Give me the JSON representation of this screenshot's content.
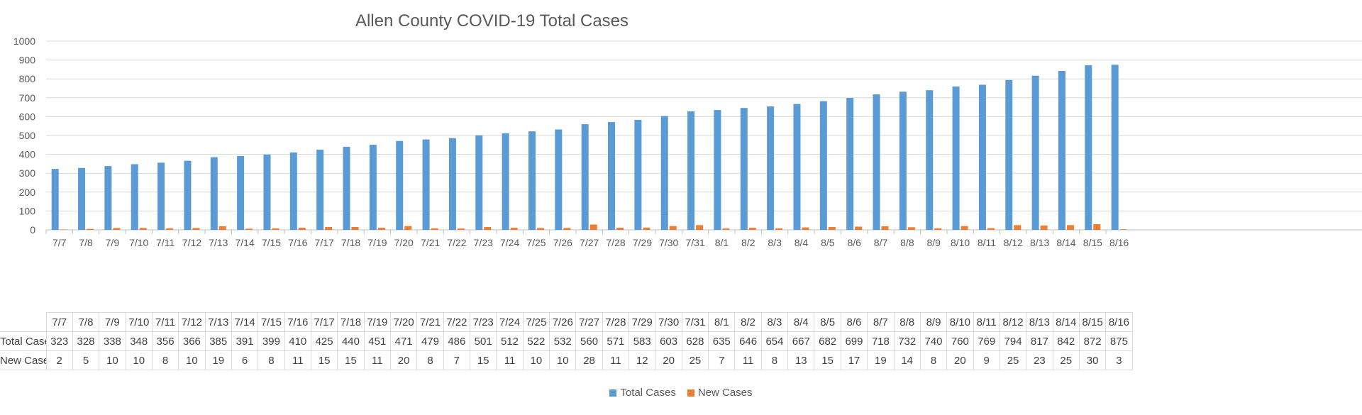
{
  "chart_data": {
    "type": "bar",
    "title": "Allen County COVID-19 Total Cases",
    "categories": [
      "7/7",
      "7/8",
      "7/9",
      "7/10",
      "7/11",
      "7/12",
      "7/13",
      "7/14",
      "7/15",
      "7/16",
      "7/17",
      "7/18",
      "7/19",
      "7/20",
      "7/21",
      "7/22",
      "7/23",
      "7/24",
      "7/25",
      "7/26",
      "7/27",
      "7/28",
      "7/29",
      "7/30",
      "7/31",
      "8/1",
      "8/2",
      "8/3",
      "8/4",
      "8/5",
      "8/6",
      "8/7",
      "8/8",
      "8/9",
      "8/10",
      "8/11",
      "8/12",
      "8/13",
      "8/14",
      "8/15",
      "8/16"
    ],
    "series": [
      {
        "name": "Total Cases",
        "color": "#5b9bd5",
        "values": [
          323,
          328,
          338,
          348,
          356,
          366,
          385,
          391,
          399,
          410,
          425,
          440,
          451,
          471,
          479,
          486,
          501,
          512,
          522,
          532,
          560,
          571,
          583,
          603,
          628,
          635,
          646,
          654,
          667,
          682,
          699,
          718,
          732,
          740,
          760,
          769,
          794,
          817,
          842,
          872,
          875
        ]
      },
      {
        "name": "New Cases",
        "color": "#ed7d31",
        "values": [
          2,
          5,
          10,
          10,
          8,
          10,
          19,
          6,
          8,
          11,
          15,
          15,
          11,
          20,
          8,
          7,
          15,
          11,
          10,
          10,
          28,
          11,
          12,
          20,
          25,
          7,
          11,
          8,
          13,
          15,
          17,
          19,
          14,
          8,
          20,
          9,
          25,
          23,
          25,
          30,
          3
        ]
      }
    ],
    "ylim": [
      0,
      1000
    ],
    "yticks": [
      0,
      100,
      200,
      300,
      400,
      500,
      600,
      700,
      800,
      900,
      1000
    ],
    "grid": true,
    "legend_position": "bottom",
    "table_row_labels": [
      "Total Cases",
      "New Cases"
    ]
  }
}
